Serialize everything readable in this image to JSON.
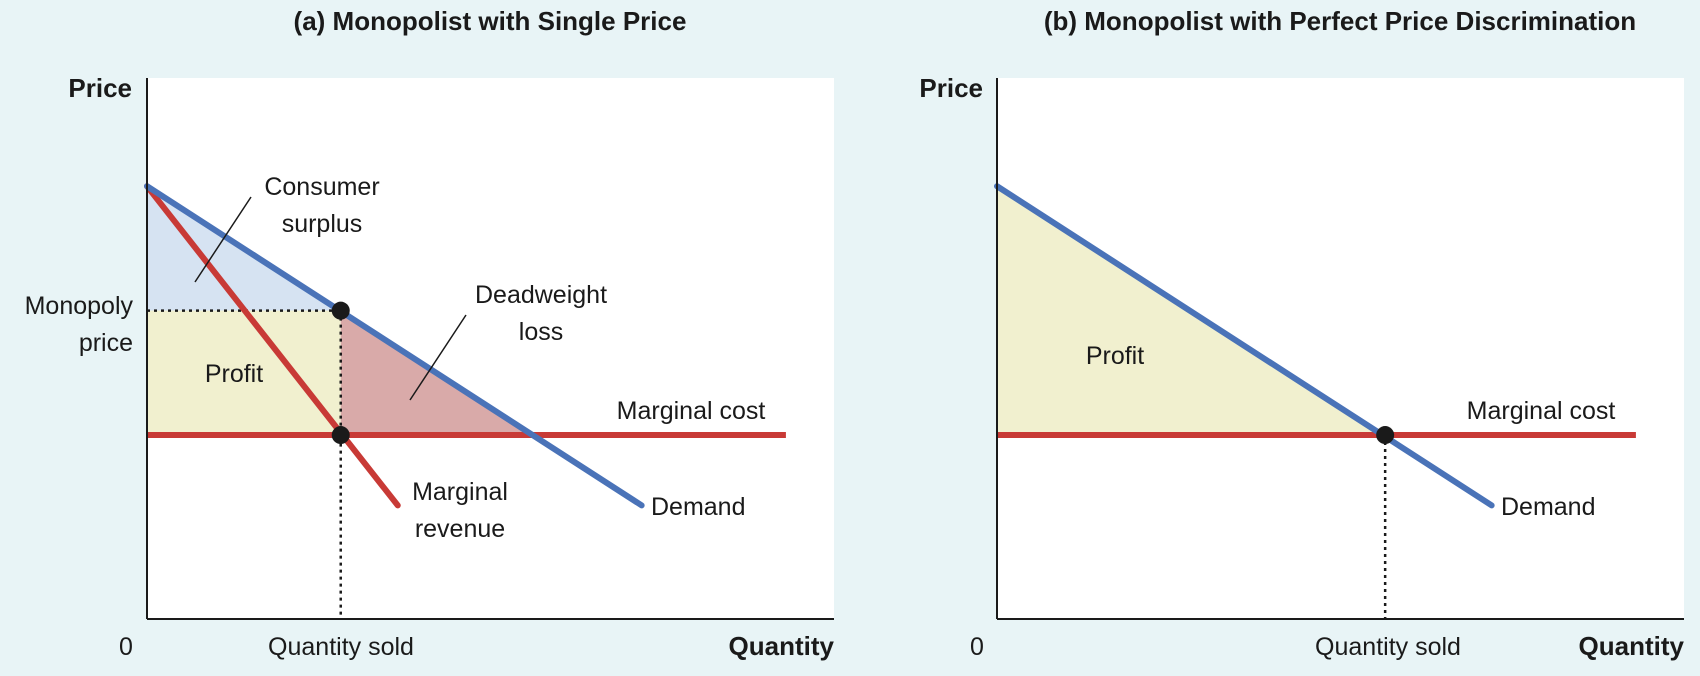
{
  "colors": {
    "demand": "#4a73b8",
    "red": "#c83a36",
    "consumer_surplus": "#d6e3f2",
    "profit": "#f1f0cf",
    "deadweight": "#d9aaa9",
    "background": "#e8f4f6"
  },
  "chart_data": [
    {
      "type": "line",
      "title": "(a) Monopolist with Single Price",
      "xlabel": "Quantity",
      "ylabel": "Price",
      "origin_label": "0",
      "xlim": [
        0,
        10
      ],
      "ylim": [
        0,
        10
      ],
      "series": [
        {
          "name": "Demand",
          "x": [
            0,
            7.2
          ],
          "y": [
            8.0,
            2.1
          ]
        },
        {
          "name": "Marginal revenue",
          "x": [
            0,
            3.65
          ],
          "y": [
            8.0,
            2.1
          ]
        },
        {
          "name": "Marginal cost",
          "x": [
            0,
            9.3
          ],
          "y": [
            3.4,
            3.4
          ]
        }
      ],
      "points": [
        {
          "x": 2.82,
          "y": 5.7
        },
        {
          "x": 2.82,
          "y": 3.4
        }
      ],
      "regions": [
        {
          "name": "Consumer surplus",
          "label_lines": [
            "Consumer",
            "surplus"
          ]
        },
        {
          "name": "Profit",
          "label_lines": [
            "Profit"
          ]
        },
        {
          "name": "Deadweight loss",
          "label_lines": [
            "Deadweight",
            "loss"
          ]
        }
      ],
      "ytick_label_lines": [
        "Monopoly",
        "price"
      ],
      "xtick_label": "Quantity sold",
      "line_labels": {
        "demand": "Demand",
        "mc": "Marginal cost",
        "mr_lines": [
          "Marginal",
          "revenue"
        ]
      }
    },
    {
      "type": "line",
      "title": "(b) Monopolist with Perfect Price Discrimination",
      "xlabel": "Quantity",
      "ylabel": "Price",
      "origin_label": "0",
      "xlim": [
        0,
        10
      ],
      "ylim": [
        0,
        10
      ],
      "series": [
        {
          "name": "Demand",
          "x": [
            0,
            7.2
          ],
          "y": [
            8.0,
            2.1
          ]
        },
        {
          "name": "Marginal cost",
          "x": [
            0,
            9.3
          ],
          "y": [
            3.4,
            3.4
          ]
        }
      ],
      "points": [
        {
          "x": 5.65,
          "y": 3.4
        }
      ],
      "regions": [
        {
          "name": "Profit",
          "label_lines": [
            "Profit"
          ]
        }
      ],
      "xtick_label": "Quantity sold",
      "line_labels": {
        "demand": "Demand",
        "mc": "Marginal cost"
      }
    }
  ]
}
